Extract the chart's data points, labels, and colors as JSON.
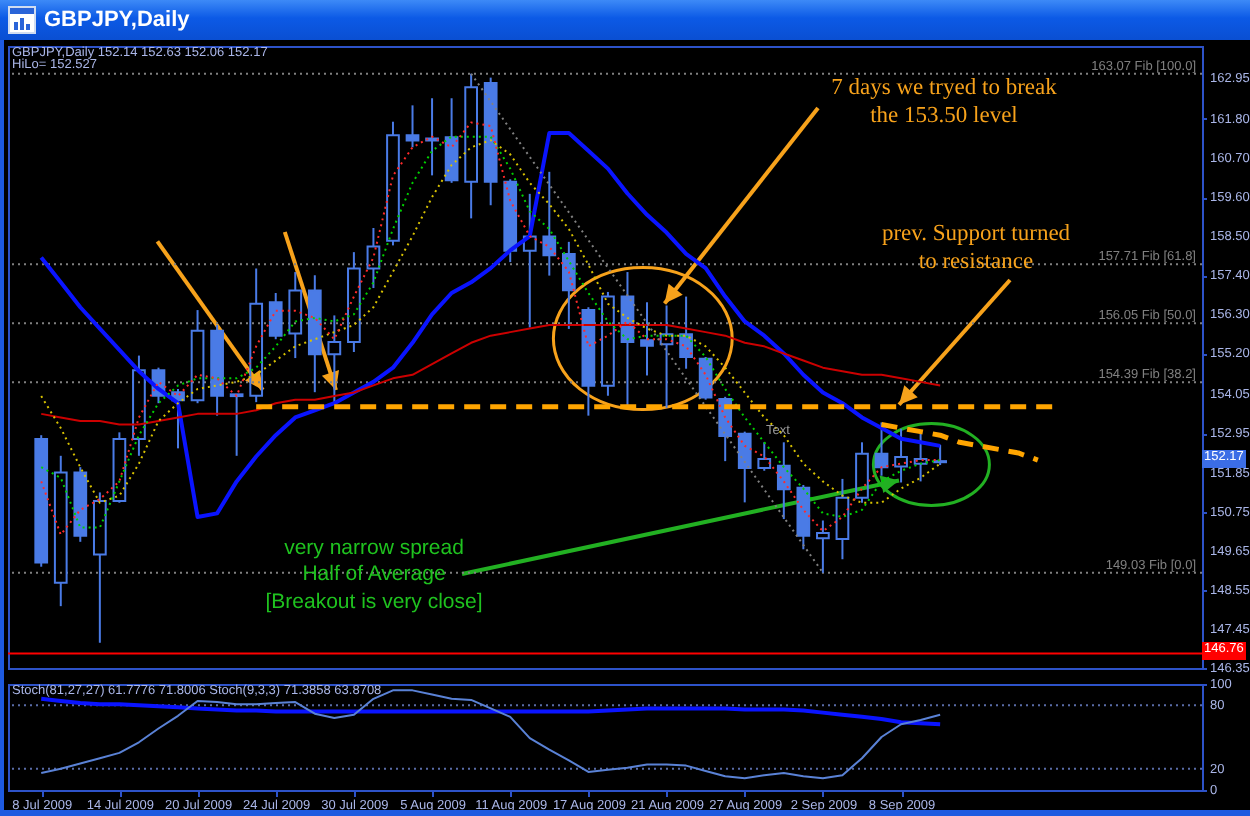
{
  "chart_data": [
    {
      "type": "candlestick",
      "title": "GBPJPY,Daily",
      "subtitle": "GBPJPY,Daily 152.14 152.63 152.06 152.17",
      "color": "#4a7be6",
      "categories": [
        "8 Jul 2009",
        null,
        null,
        null,
        "14 Jul 2009",
        null,
        null,
        null,
        "20 Jul 2009",
        null,
        null,
        null,
        "24 Jul 2009",
        null,
        null,
        null,
        "30 Jul 2009",
        null,
        null,
        null,
        "5 Aug 2009",
        null,
        null,
        null,
        "11 Aug 2009",
        null,
        null,
        null,
        "17 Aug 2009",
        null,
        null,
        null,
        "21 Aug 2009",
        null,
        null,
        null,
        "27 Aug 2009",
        null,
        null,
        null,
        "2 Sep 2009",
        null,
        null,
        null,
        "8 Sep 2009",
        null,
        null,
        null,
        null,
        null,
        null,
        null,
        null,
        null,
        null,
        null,
        null,
        null,
        null,
        null
      ],
      "ohlc": [
        [
          152.79,
          152.9,
          149.2,
          149.32
        ],
        [
          148.75,
          152.32,
          148.09,
          151.85
        ],
        [
          151.85,
          152.0,
          149.9,
          150.07
        ],
        [
          149.54,
          151.29,
          147.06,
          151.05
        ],
        [
          151.05,
          152.98,
          151.0,
          152.79
        ],
        [
          152.79,
          155.14,
          152.32,
          154.73
        ],
        [
          154.73,
          154.8,
          153.8,
          154.01
        ],
        [
          154.11,
          154.2,
          152.53,
          153.88
        ],
        [
          153.88,
          156.42,
          153.8,
          155.84
        ],
        [
          155.84,
          156.0,
          153.45,
          154.01
        ],
        [
          154.0,
          154.05,
          152.32,
          154.05
        ],
        [
          154.01,
          157.59,
          153.83,
          156.6
        ],
        [
          156.64,
          156.9,
          155.6,
          155.7
        ],
        [
          155.76,
          157.49,
          155.07,
          156.97
        ],
        [
          156.97,
          157.4,
          154.11,
          155.18
        ],
        [
          155.18,
          156.27,
          153.83,
          155.52
        ],
        [
          155.52,
          158.05,
          155.24,
          157.59
        ],
        [
          157.59,
          158.73,
          157.04,
          158.21
        ],
        [
          158.37,
          161.72,
          158.24,
          161.34
        ],
        [
          161.34,
          162.18,
          161.0,
          161.19
        ],
        [
          161.19,
          162.38,
          160.21,
          161.25
        ],
        [
          161.28,
          162.38,
          160.0,
          160.07
        ],
        [
          160.03,
          163.07,
          159.0,
          162.69
        ],
        [
          162.81,
          162.96,
          159.37,
          160.03
        ],
        [
          160.03,
          160.1,
          157.77,
          158.09
        ],
        [
          158.09,
          159.69,
          155.93,
          158.49
        ],
        [
          158.49,
          160.31,
          157.39,
          157.96
        ],
        [
          158.0,
          158.34,
          155.89,
          156.98
        ],
        [
          156.42,
          156.5,
          153.45,
          154.29
        ],
        [
          154.29,
          156.93,
          154.01,
          156.8
        ],
        [
          156.8,
          157.49,
          153.64,
          155.52
        ],
        [
          155.57,
          156.64,
          154.58,
          155.42
        ],
        [
          155.46,
          156.55,
          153.67,
          155.74
        ],
        [
          155.74,
          156.8,
          154.77,
          155.1
        ],
        [
          155.05,
          155.1,
          153.9,
          153.96
        ],
        [
          153.92,
          153.98,
          152.17,
          152.88
        ],
        [
          152.94,
          153.0,
          151.01,
          151.98
        ],
        [
          151.98,
          152.7,
          151.9,
          152.23
        ],
        [
          152.04,
          152.7,
          150.54,
          151.38
        ],
        [
          151.42,
          151.5,
          149.69,
          150.07
        ],
        [
          150.0,
          150.5,
          149.03,
          150.15
        ],
        [
          149.98,
          151.67,
          149.41,
          151.14
        ],
        [
          151.14,
          152.7,
          151.0,
          152.38
        ],
        [
          152.38,
          153.26,
          151.76,
          152.0
        ],
        [
          152.02,
          153.08,
          151.57,
          152.29
        ],
        [
          152.1,
          153.0,
          151.6,
          152.23
        ],
        [
          152.14,
          152.63,
          152.06,
          152.17
        ],
        null,
        null,
        null,
        null,
        null,
        null,
        null,
        null,
        null,
        null,
        null,
        null,
        null
      ],
      "series": [
        {
          "type": "line",
          "color": "#0a14ff",
          "values": [
            157.9,
            157.2,
            156.5,
            155.9,
            155.3,
            154.7,
            154.2,
            153.8,
            150.6,
            150.7,
            151.6,
            152.3,
            152.9,
            153.4,
            153.6,
            153.8,
            154.1,
            154.4,
            154.8,
            155.5,
            156.3,
            156.9,
            157.2,
            157.6,
            158.1,
            158.5,
            161.4,
            161.4,
            160.9,
            160.4,
            159.7,
            159.1,
            158.6,
            158.0,
            157.6,
            156.8,
            156.1,
            155.7,
            155.2,
            154.6,
            154.1,
            153.8,
            153.4,
            153.1,
            152.8,
            152.7,
            152.6,
            null,
            null,
            null,
            null,
            null,
            null,
            null,
            null,
            null,
            null,
            null,
            null,
            null
          ]
        },
        {
          "type": "line",
          "color": "#cc0000",
          "values": [
            153.5,
            153.4,
            153.3,
            153.3,
            153.2,
            153.2,
            153.3,
            153.4,
            153.5,
            153.5,
            153.5,
            153.6,
            153.8,
            153.9,
            153.9,
            154.0,
            154.1,
            154.3,
            154.5,
            154.6,
            154.9,
            155.2,
            155.5,
            155.7,
            155.8,
            155.9,
            156.0,
            156.0,
            156.0,
            156.0,
            156.0,
            156.0,
            156.0,
            155.9,
            155.8,
            155.7,
            155.5,
            155.4,
            155.2,
            155.0,
            154.8,
            154.7,
            154.6,
            154.6,
            154.5,
            154.4,
            154.3,
            null,
            null,
            null,
            null,
            null,
            null,
            null,
            null,
            null,
            null,
            null,
            null,
            null
          ]
        },
        {
          "type": "line",
          "color": "#d8c200",
          "line_style": "dotted",
          "values": [
            154.0,
            153.1,
            152.0,
            151.0,
            151.2,
            152.1,
            153.3,
            153.8,
            154.2,
            154.3,
            154.4,
            154.6,
            155.0,
            155.4,
            155.6,
            155.8,
            156.0,
            156.5,
            157.5,
            158.5,
            159.6,
            160.5,
            161.0,
            161.2,
            160.8,
            160.0,
            159.4,
            158.7,
            157.7,
            156.6,
            156.2,
            155.9,
            155.7,
            155.7,
            155.4,
            154.8,
            154.1,
            153.4,
            152.9,
            152.1,
            151.6,
            151.2,
            151.0,
            151.0,
            151.4,
            151.7,
            152.1,
            null,
            null,
            null,
            null,
            null,
            null,
            null,
            null,
            null,
            null,
            null,
            null,
            null
          ]
        },
        {
          "type": "line",
          "color": "#00d000",
          "line_style": "dotted",
          "values": [
            152.0,
            151.7,
            150.3,
            150.3,
            151.6,
            152.9,
            153.8,
            154.3,
            154.5,
            154.5,
            154.5,
            154.8,
            155.4,
            156.1,
            156.2,
            156.1,
            156.3,
            157.2,
            158.7,
            160.0,
            160.9,
            161.3,
            161.3,
            161.3,
            160.4,
            159.2,
            158.7,
            157.8,
            156.9,
            156.1,
            155.6,
            155.7,
            155.7,
            155.7,
            155.1,
            154.2,
            153.4,
            152.7,
            152.0,
            151.4,
            150.7,
            150.6,
            150.8,
            151.6,
            151.9,
            152.1,
            152.2,
            null,
            null,
            null,
            null,
            null,
            null,
            null,
            null,
            null,
            null,
            null,
            null,
            null
          ]
        },
        {
          "type": "line",
          "color": "#ff2a2a",
          "line_style": "dotted",
          "values": [
            151.6,
            150.1,
            150.8,
            151.1,
            151.6,
            153.4,
            154.4,
            154.0,
            154.6,
            154.5,
            154.0,
            155.4,
            156.4,
            156.4,
            156.2,
            155.6,
            156.8,
            157.9,
            160.2,
            161.0,
            161.3,
            161.0,
            161.7,
            161.6,
            159.5,
            158.5,
            158.2,
            157.5,
            155.4,
            155.7,
            156.1,
            155.6,
            155.6,
            155.4,
            154.6,
            153.4,
            152.6,
            152.3,
            151.6,
            150.8,
            150.2,
            150.6,
            151.4,
            152.0,
            152.1,
            152.2,
            152.2,
            null,
            null,
            null,
            null,
            null,
            null,
            null,
            null,
            null,
            null,
            null,
            null,
            null
          ]
        },
        {
          "type": "line",
          "color": "#808080",
          "line_style": "dotted",
          "values": [
            null,
            null,
            null,
            null,
            null,
            null,
            null,
            null,
            null,
            null,
            null,
            null,
            null,
            null,
            null,
            null,
            null,
            null,
            null,
            null,
            null,
            null,
            163.07,
            162.29,
            161.51,
            160.73,
            159.95,
            159.17,
            158.39,
            157.61,
            156.83,
            156.05,
            155.27,
            154.49,
            153.71,
            152.93,
            152.15,
            151.37,
            150.59,
            149.81,
            149.03,
            null,
            null,
            null,
            null,
            null,
            null,
            null,
            null,
            null,
            null,
            null,
            null,
            null,
            null,
            null,
            null,
            null,
            null,
            null
          ]
        },
        {
          "type": "line",
          "color": "#ffa500",
          "line_style": "dashed",
          "values": [
            null,
            null,
            null,
            null,
            null,
            null,
            null,
            null,
            null,
            null,
            null,
            153.7,
            153.7,
            153.7,
            153.7,
            153.7,
            153.7,
            153.7,
            153.7,
            153.7,
            153.7,
            153.7,
            153.7,
            153.7,
            153.7,
            153.7,
            153.7,
            153.7,
            153.7,
            153.7,
            153.7,
            153.7,
            153.7,
            153.7,
            153.7,
            153.7,
            153.7,
            153.7,
            153.7,
            153.7,
            153.7,
            153.7,
            153.7,
            153.7,
            153.7,
            153.7,
            153.7,
            153.7,
            153.7,
            153.7,
            153.7,
            153.7,
            153.7,
            null,
            null,
            null,
            null,
            null,
            null,
            null
          ]
        },
        {
          "type": "line",
          "color": "#ffa500",
          "line_style": "dashed",
          "values": [
            null,
            null,
            null,
            null,
            null,
            null,
            null,
            null,
            null,
            null,
            null,
            null,
            null,
            null,
            null,
            null,
            null,
            null,
            null,
            null,
            null,
            null,
            null,
            null,
            null,
            null,
            null,
            null,
            null,
            null,
            null,
            null,
            null,
            null,
            null,
            null,
            null,
            null,
            null,
            null,
            null,
            null,
            null,
            153.2,
            153.1,
            153.0,
            152.9,
            152.7,
            152.6,
            152.5,
            152.4,
            152.2,
            null,
            null,
            null,
            null,
            null,
            null,
            null,
            null
          ]
        }
      ],
      "ylim": [
        146.35,
        163.85
      ],
      "yticks": [
        162.95,
        {
          "value": 161.8,
          "label": "161.80"
        },
        {
          "value": 160.7,
          "label": "160.70"
        },
        {
          "value": 159.6,
          "label": "159.60"
        },
        {
          "value": 158.5,
          "label": "158.50"
        },
        {
          "value": 157.4,
          "label": "157.40"
        },
        {
          "value": 156.3,
          "label": "156.30"
        },
        {
          "value": 155.2,
          "label": "155.20"
        },
        154.05,
        152.95,
        151.85,
        150.75,
        149.65,
        148.55,
        147.45,
        146.35
      ],
      "ref_lines": [
        {
          "axis": "y",
          "value": 163.07,
          "label": "163.07 Fib [100.0]",
          "color": "#808080",
          "line_style": "dotted"
        },
        {
          "axis": "y",
          "value": 157.71,
          "label": "157.71 Fib [61.8]",
          "color": "#808080",
          "line_style": "dotted"
        },
        {
          "axis": "y",
          "value": 156.05,
          "label": "156.05 Fib [50.0]",
          "color": "#808080",
          "line_style": "dotted"
        },
        {
          "axis": "y",
          "value": 154.39,
          "label": "154.39 Fib [38.2]",
          "color": "#808080",
          "line_style": "dotted"
        },
        {
          "axis": "y",
          "value": 149.03,
          "label": "149.03 Fib [0.0]",
          "color": "#808080",
          "line_style": "dotted"
        },
        {
          "axis": "y",
          "value": 146.76,
          "label": "146.76",
          "color": "#ff0000",
          "line_style": "solid"
        }
      ],
      "annotations": [
        "HiLo= 152.527",
        {
          "text": "7 days we tryed to break\nthe 153.50 level",
          "x": "21 Aug 2009",
          "y": 156.55
        },
        {
          "text": "prev. Support turned\nto resistance",
          "x": "8 Sep 2009",
          "y": 153.7
        },
        {
          "text": "very narrow spread\nHalf of Average\n[Breakout is very close]",
          "x": "8 Sep 2009",
          "y": 151.57
        },
        "Text",
        {
          "text": "152.17",
          "y": 152.17
        }
      ],
      "tick_labels": "y"
    },
    {
      "type": "line",
      "title": "Stoch(81,27,27) 61.7776 71.8006 Stoch(9,3,3) 71.3858 63.8708",
      "categories": [
        "8 Jul 2009",
        null,
        null,
        null,
        "14 Jul 2009",
        null,
        null,
        null,
        "20 Jul 2009",
        null,
        null,
        null,
        "24 Jul 2009",
        null,
        null,
        null,
        "30 Jul 2009",
        null,
        null,
        null,
        "5 Aug 2009",
        null,
        null,
        null,
        "11 Aug 2009",
        null,
        null,
        null,
        "17 Aug 2009",
        null,
        null,
        null,
        "21 Aug 2009",
        null,
        null,
        null,
        "27 Aug 2009",
        null,
        null,
        null,
        "2 Sep 2009",
        null,
        null,
        null,
        "8 Sep 2009",
        null,
        null,
        null,
        null,
        null,
        null,
        null,
        null,
        null,
        null,
        null,
        null,
        null,
        null,
        null
      ],
      "series": [
        {
          "color": "#0a14ff",
          "values": [
            86,
            84,
            82,
            81,
            81,
            80,
            79,
            78,
            77,
            76,
            75,
            75,
            74,
            74,
            74,
            74,
            74,
            74,
            74,
            74,
            74,
            74,
            74,
            74,
            74,
            74,
            74,
            74,
            74,
            75,
            76,
            77,
            77,
            77,
            77,
            77,
            76,
            76,
            76,
            75,
            73,
            71,
            69,
            67,
            64,
            63,
            62,
            null,
            null,
            null,
            null,
            null,
            null,
            null,
            null,
            null,
            null,
            null,
            null,
            null
          ]
        },
        {
          "color": "#5a82d6",
          "values": [
            16,
            20,
            25,
            30,
            35,
            45,
            58,
            70,
            84,
            83,
            81,
            81,
            82,
            83,
            72,
            68,
            71,
            86,
            94,
            94,
            90,
            86,
            85,
            77,
            69,
            49,
            38,
            28,
            17,
            19,
            21,
            24,
            24,
            23,
            18,
            13,
            11,
            14,
            16,
            13,
            11,
            14,
            30,
            50,
            62,
            66,
            71,
            null,
            null,
            null,
            null,
            null,
            null,
            null,
            null,
            null,
            null,
            null,
            null,
            null
          ]
        }
      ],
      "ylim": [
        0,
        100
      ],
      "yticks": [
        0,
        20,
        80,
        100
      ],
      "ref_lines": [
        {
          "axis": "y",
          "value": 80,
          "color": "#5a6ca8",
          "line_style": "dotted"
        },
        {
          "axis": "y",
          "value": 20,
          "color": "#5a6ca8",
          "line_style": "dotted"
        }
      ]
    }
  ]
}
